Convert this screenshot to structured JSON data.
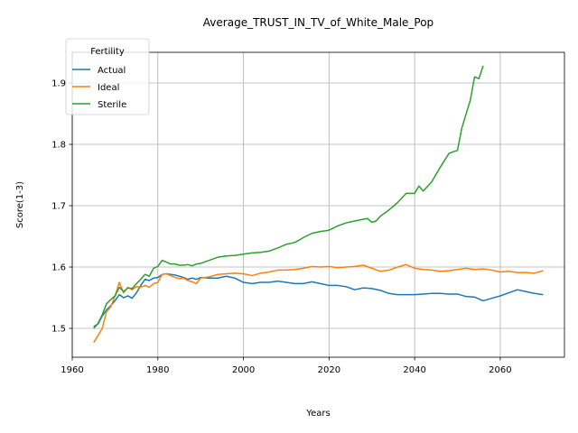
{
  "chart_data": {
    "type": "line",
    "title": "Average_TRUST_IN_TV_of_White_Male_Pop",
    "xlabel": "Years",
    "ylabel": "Score(1-3)",
    "xlim": [
      1960,
      2075
    ],
    "ylim": [
      1.453,
      1.95
    ],
    "xticks": [
      1960,
      1980,
      2000,
      2020,
      2040,
      2060
    ],
    "yticks": [
      1.5,
      1.6,
      1.7,
      1.8,
      1.9
    ],
    "xtick_labels": [
      "1960",
      "1980",
      "2000",
      "2020",
      "2040",
      "2060"
    ],
    "ytick_labels": [
      "1.5",
      "1.6",
      "1.7",
      "1.8",
      "1.9"
    ],
    "grid": true,
    "legend": {
      "title": "Fertility",
      "position": "top-left"
    },
    "series": [
      {
        "name": "Actual",
        "color": "#1f77b4",
        "x": [
          1965,
          1966,
          1967,
          1968,
          1969,
          1970,
          1971,
          1972,
          1973,
          1974,
          1975,
          1976,
          1977,
          1978,
          1979,
          1980,
          1981,
          1982,
          1983,
          1984,
          1985,
          1986,
          1987,
          1988,
          1989,
          1990,
          1992,
          1994,
          1996,
          1998,
          2000,
          2002,
          2004,
          2006,
          2008,
          2010,
          2012,
          2014,
          2016,
          2018,
          2020,
          2022,
          2024,
          2026,
          2028,
          2030,
          2032,
          2034,
          2036,
          2038,
          2040,
          2042,
          2044,
          2046,
          2048,
          2050,
          2052,
          2054,
          2056,
          2058,
          2060,
          2062,
          2064,
          2066,
          2068,
          2070
        ],
        "y": [
          1.503,
          1.507,
          1.52,
          1.53,
          1.537,
          1.545,
          1.555,
          1.55,
          1.553,
          1.549,
          1.558,
          1.57,
          1.58,
          1.578,
          1.582,
          1.583,
          1.588,
          1.589,
          1.588,
          1.587,
          1.585,
          1.583,
          1.58,
          1.582,
          1.58,
          1.583,
          1.582,
          1.582,
          1.585,
          1.582,
          1.575,
          1.573,
          1.575,
          1.575,
          1.577,
          1.575,
          1.573,
          1.573,
          1.576,
          1.573,
          1.57,
          1.57,
          1.568,
          1.563,
          1.566,
          1.565,
          1.562,
          1.557,
          1.555,
          1.555,
          1.555,
          1.556,
          1.557,
          1.557,
          1.556,
          1.556,
          1.552,
          1.551,
          1.545,
          1.549,
          1.553,
          1.558,
          1.563,
          1.56,
          1.557,
          1.555
        ]
      },
      {
        "name": "Ideal",
        "color": "#ff7f0e",
        "x": [
          1965,
          1966,
          1967,
          1968,
          1969,
          1970,
          1971,
          1972,
          1973,
          1974,
          1975,
          1976,
          1977,
          1978,
          1979,
          1980,
          1981,
          1982,
          1983,
          1984,
          1985,
          1986,
          1987,
          1988,
          1989,
          1990,
          1992,
          1994,
          1996,
          1998,
          2000,
          2002,
          2004,
          2006,
          2008,
          2010,
          2012,
          2014,
          2016,
          2018,
          2020,
          2022,
          2024,
          2026,
          2028,
          2030,
          2032,
          2034,
          2036,
          2038,
          2040,
          2042,
          2044,
          2046,
          2048,
          2050,
          2052,
          2054,
          2056,
          2058,
          2060,
          2062,
          2064,
          2066,
          2068,
          2070
        ],
        "y": [
          1.477,
          1.488,
          1.5,
          1.527,
          1.535,
          1.553,
          1.575,
          1.558,
          1.567,
          1.563,
          1.568,
          1.567,
          1.57,
          1.567,
          1.573,
          1.575,
          1.588,
          1.589,
          1.586,
          1.583,
          1.581,
          1.582,
          1.578,
          1.576,
          1.573,
          1.582,
          1.584,
          1.588,
          1.589,
          1.59,
          1.589,
          1.586,
          1.59,
          1.592,
          1.595,
          1.595,
          1.596,
          1.598,
          1.601,
          1.6,
          1.601,
          1.599,
          1.6,
          1.601,
          1.603,
          1.598,
          1.593,
          1.595,
          1.6,
          1.604,
          1.598,
          1.596,
          1.595,
          1.593,
          1.594,
          1.596,
          1.598,
          1.596,
          1.597,
          1.595,
          1.592,
          1.593,
          1.591,
          1.591,
          1.59,
          1.594
        ]
      },
      {
        "name": "Sterile",
        "color": "#2ca02c",
        "x": [
          1965,
          1966,
          1967,
          1968,
          1969,
          1970,
          1971,
          1972,
          1973,
          1974,
          1975,
          1976,
          1977,
          1978,
          1979,
          1980,
          1981,
          1982,
          1983,
          1984,
          1985,
          1986,
          1987,
          1988,
          1989,
          1990,
          1992,
          1994,
          1996,
          1998,
          2000,
          2002,
          2004,
          2006,
          2008,
          2010,
          2012,
          2014,
          2016,
          2018,
          2020,
          2022,
          2024,
          2026,
          2028,
          2029,
          2030,
          2031,
          2032,
          2034,
          2036,
          2038,
          2040,
          2041,
          2042,
          2044,
          2046,
          2048,
          2049,
          2050,
          2051,
          2052,
          2053,
          2054,
          2055,
          2056
        ],
        "y": [
          1.5,
          1.508,
          1.522,
          1.54,
          1.547,
          1.553,
          1.567,
          1.56,
          1.566,
          1.565,
          1.573,
          1.58,
          1.588,
          1.585,
          1.598,
          1.601,
          1.611,
          1.608,
          1.605,
          1.605,
          1.603,
          1.603,
          1.604,
          1.602,
          1.605,
          1.606,
          1.611,
          1.616,
          1.618,
          1.619,
          1.621,
          1.623,
          1.624,
          1.626,
          1.631,
          1.637,
          1.64,
          1.648,
          1.655,
          1.658,
          1.66,
          1.667,
          1.672,
          1.675,
          1.678,
          1.679,
          1.673,
          1.675,
          1.683,
          1.693,
          1.705,
          1.72,
          1.72,
          1.732,
          1.724,
          1.739,
          1.763,
          1.785,
          1.788,
          1.79,
          1.826,
          1.849,
          1.872,
          1.91,
          1.907,
          1.928
        ]
      }
    ]
  }
}
